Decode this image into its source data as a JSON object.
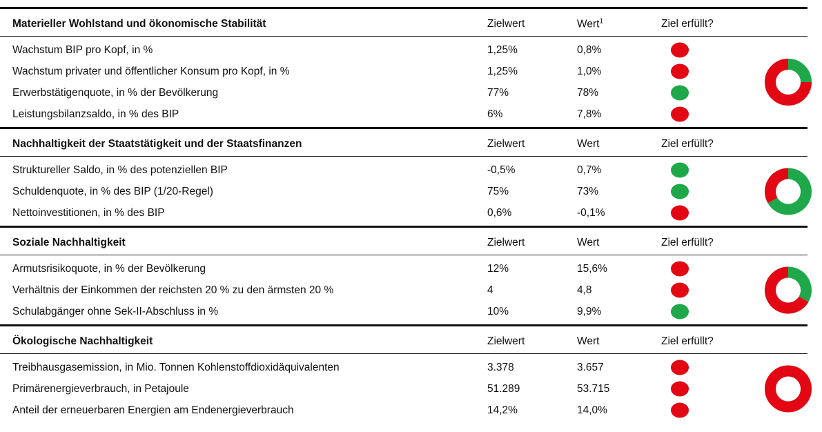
{
  "colors": {
    "met": "#1ea84a",
    "unmet": "#e30613"
  },
  "sections": [
    {
      "title": "Materieller Wohlstand und ökonomische Stabilität",
      "target_header": "Zielwert",
      "value_header": "Wert",
      "value_note": "1",
      "status_header": "Ziel erfüllt?",
      "rows": [
        {
          "label": "Wachstum BIP pro Kopf, in %",
          "target": "1,25%",
          "value": "0,8%",
          "met": false
        },
        {
          "label": "Wachstum privater und öffentlicher Konsum pro Kopf, in %",
          "target": "1,25%",
          "value": "1,0%",
          "met": false
        },
        {
          "label": "Erwerbstätigenquote, in % der Bevölkerung",
          "target": "77%",
          "value": "78%",
          "met": true
        },
        {
          "label": "Leistungsbilanzsaldo, in % des BIP",
          "target": "6%",
          "value": "7,8%",
          "met": false
        }
      ]
    },
    {
      "title": "Nachhaltigkeit der Staatstätigkeit und der Staatsfinanzen",
      "target_header": "Zielwert",
      "value_header": "Wert",
      "status_header": "Ziel erfüllt?",
      "rows": [
        {
          "label": "Struktureller Saldo, in % des potenziellen BIP",
          "target": "-0,5%",
          "value": "0,7%",
          "met": true
        },
        {
          "label": "Schuldenquote, in % des BIP (1/20-Regel)",
          "target": "75%",
          "value": "73%",
          "met": true
        },
        {
          "label": "Nettoinvestitionen, in % des BIP",
          "target": "0,6%",
          "value": "-0,1%",
          "met": false
        }
      ]
    },
    {
      "title": "Soziale Nachhaltigkeit",
      "target_header": "Zielwert",
      "value_header": "Wert",
      "status_header": "Ziel erfüllt?",
      "rows": [
        {
          "label": "Armutsrisikoquote, in % der Bevölkerung",
          "target": "12%",
          "value": "15,6%",
          "met": false
        },
        {
          "label": "Verhältnis der Einkommen der reichsten 20 % zu den ärmsten 20 %",
          "target": "4",
          "value": "4,8",
          "met": false
        },
        {
          "label": "Schulabgänger ohne Sek-II-Abschluss in %",
          "target": "10%",
          "value": "9,9%",
          "met": true
        }
      ]
    },
    {
      "title": "Ökologische Nachhaltigkeit",
      "target_header": "Zielwert",
      "value_header": "Wert",
      "status_header": "Ziel erfüllt?",
      "rows": [
        {
          "label": "Treibhausgasemission, in Mio. Tonnen Kohlenstoffdioxidäquivalenten",
          "target": "3.378",
          "value": "3.657",
          "met": false
        },
        {
          "label": "Primärenergieverbrauch, in Petajoule",
          "target": "51.289",
          "value": "53.715",
          "met": false
        },
        {
          "label": "Anteil der erneuerbaren Energien am Endenergieverbrauch",
          "target": "14,2%",
          "value": "14,0%",
          "met": false
        }
      ]
    }
  ]
}
